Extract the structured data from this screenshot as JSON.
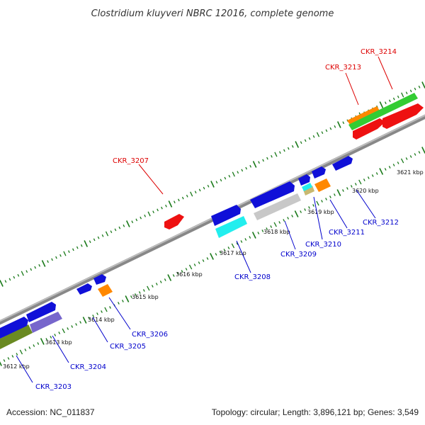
{
  "title": "Clostridium kluyveri NBRC 12016, complete genome",
  "footer": {
    "accession": "Accession: NC_011837",
    "summary": "Topology: circular; Length: 3,896,121 bp; Genes: 3,549"
  },
  "colors": {
    "backbone": "#999999",
    "tick": "#1a7a1a",
    "label_red": "#dd0000",
    "label_blue": "#0000cc",
    "blue": "#1010d8",
    "red": "#ee1111",
    "green": "#33cc33",
    "orange": "#ff8800",
    "cyan": "#22eeee",
    "gray": "#c8c8c8",
    "purple": "#7766cc",
    "olive": "#6a8a22",
    "tan": "#c8b870"
  },
  "scale_labels": [
    "3612 kbp",
    "3613 kbp",
    "3614 kbp",
    "3615 kbp",
    "3616 kbp",
    "3617 kbp",
    "3618 kbp",
    "3619 kbp",
    "3620 kbp",
    "3621 kbp"
  ],
  "gene_labels_top": [
    "CKR_3207",
    "CKR_3213",
    "CKR_3214"
  ],
  "gene_labels_bottom": [
    "CKR_3203",
    "CKR_3204",
    "CKR_3205",
    "CKR_3206",
    "CKR_3208",
    "CKR_3209",
    "CKR_3210",
    "CKR_3211",
    "CKR_3212"
  ]
}
